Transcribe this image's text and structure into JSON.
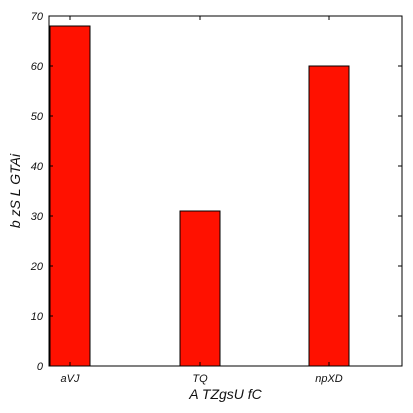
{
  "chart_data": {
    "type": "bar",
    "categories": [
      "aVJ",
      "TQ",
      "npXD"
    ],
    "values": [
      68,
      31,
      60
    ],
    "title": "",
    "xlabel": "A TZgsU fC",
    "ylabel": "b zS L GTAi",
    "ylim": [
      0,
      70
    ],
    "yticks": [
      0,
      10,
      20,
      30,
      40,
      50,
      60,
      70
    ],
    "grid": false,
    "bar_color": "#ff1100",
    "bar_edge_color": "#000000"
  }
}
